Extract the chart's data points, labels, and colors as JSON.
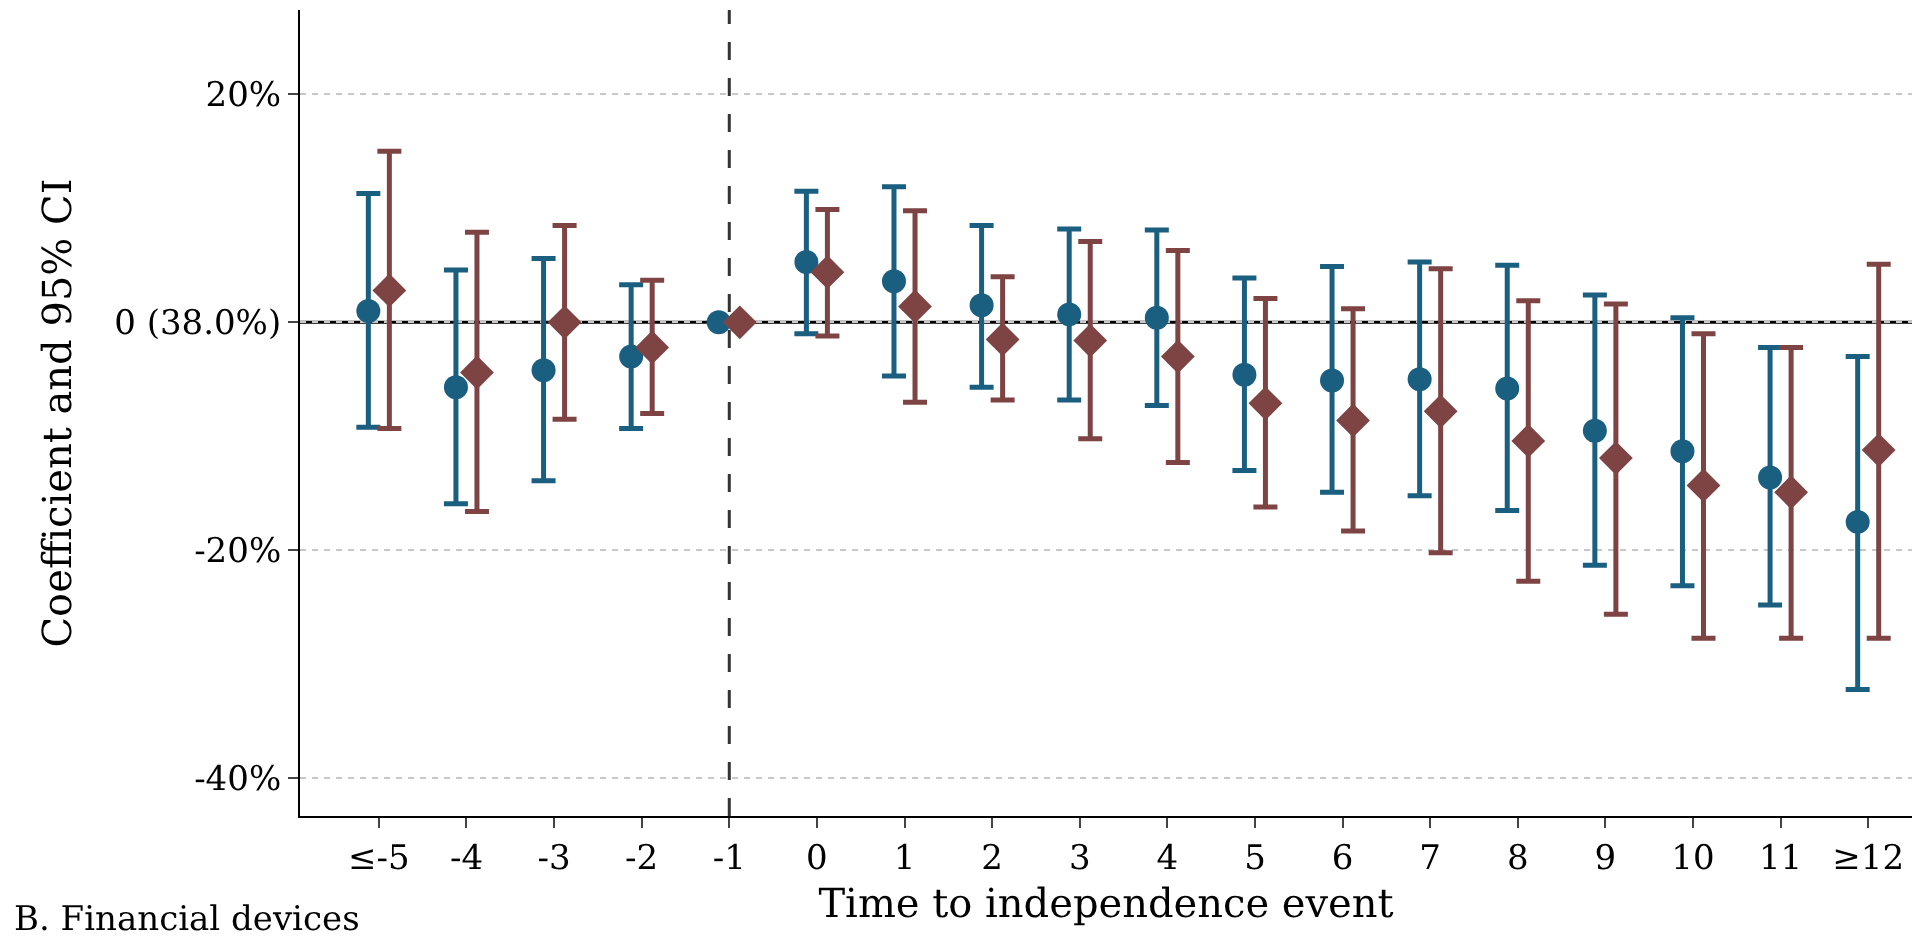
{
  "chart_data": {
    "type": "scatter",
    "xlabel": "Time to independence event",
    "ylabel": "Coefficient and 95% CI",
    "categories": [
      "≤-5",
      "-4",
      "-3",
      "-2",
      "-1",
      "0",
      "1",
      "2",
      "3",
      "4",
      "5",
      "6",
      "7",
      "8",
      "9",
      "10",
      "11",
      "≥12"
    ],
    "series": [
      {
        "color": "#1a5e80",
        "marker": "circle",
        "values": [
          1.0,
          -5.7,
          -4.2,
          -3.0,
          0,
          5.3,
          3.6,
          1.5,
          0.7,
          0.4,
          -4.6,
          -5.1,
          -5.0,
          -5.8,
          -9.5,
          -11.3,
          -13.6,
          -17.5
        ],
        "errors": [
          [
            -9.2,
            11.3
          ],
          [
            -15.9,
            4.6
          ],
          [
            -13.9,
            5.6
          ],
          [
            -9.3,
            3.3
          ],
          null,
          [
            -1.0,
            11.5
          ],
          [
            -4.7,
            11.9
          ],
          [
            -5.7,
            8.5
          ],
          [
            -6.8,
            8.2
          ],
          [
            -7.3,
            8.1
          ],
          [
            -13.0,
            3.9
          ],
          [
            -14.9,
            4.9
          ],
          [
            -15.2,
            5.3
          ],
          [
            -16.5,
            5.0
          ],
          [
            -21.3,
            2.4
          ],
          [
            -23.1,
            0.4
          ],
          [
            -24.8,
            -2.2
          ],
          [
            -32.2,
            -3.0
          ]
        ]
      },
      {
        "color": "#7e4444",
        "marker": "diamond",
        "values": [
          2.8,
          -4.4,
          0.0,
          -2.2,
          0,
          4.4,
          1.4,
          -1.5,
          -1.6,
          -3.0,
          -7.1,
          -8.6,
          -7.8,
          -10.4,
          -11.9,
          -14.3,
          -14.9,
          -11.2
        ],
        "errors": [
          [
            -9.3,
            15.0
          ],
          [
            -16.6,
            7.9
          ],
          [
            -8.5,
            8.5
          ],
          [
            -8.0,
            3.7
          ],
          null,
          [
            -1.2,
            9.9
          ],
          [
            -7.0,
            9.8
          ],
          [
            -6.8,
            4.0
          ],
          [
            -10.2,
            7.1
          ],
          [
            -12.3,
            6.3
          ],
          [
            -16.2,
            2.1
          ],
          [
            -18.3,
            1.2
          ],
          [
            -20.2,
            4.7
          ],
          [
            -22.7,
            1.9
          ],
          [
            -25.6,
            1.6
          ],
          [
            -27.7,
            -1.0
          ],
          [
            -27.7,
            -2.2
          ],
          [
            -27.7,
            5.1
          ]
        ]
      }
    ],
    "ylim": [
      -43.3,
      27.4
    ],
    "yticks": [
      {
        "value": -40,
        "label": "-40%"
      },
      {
        "value": -20,
        "label": "-20%"
      },
      {
        "value": 0,
        "label": "0 (38.0%)"
      },
      {
        "value": 20,
        "label": "20%"
      }
    ],
    "grid": "y",
    "ref_lines": [
      {
        "axis": "y",
        "value": 0,
        "color": "#000000",
        "line_style": "solid"
      },
      {
        "axis": "x",
        "value": "-1",
        "color": "#333333",
        "line_style": "dashed"
      }
    ],
    "annotations": [
      "B. Financial devices"
    ]
  }
}
